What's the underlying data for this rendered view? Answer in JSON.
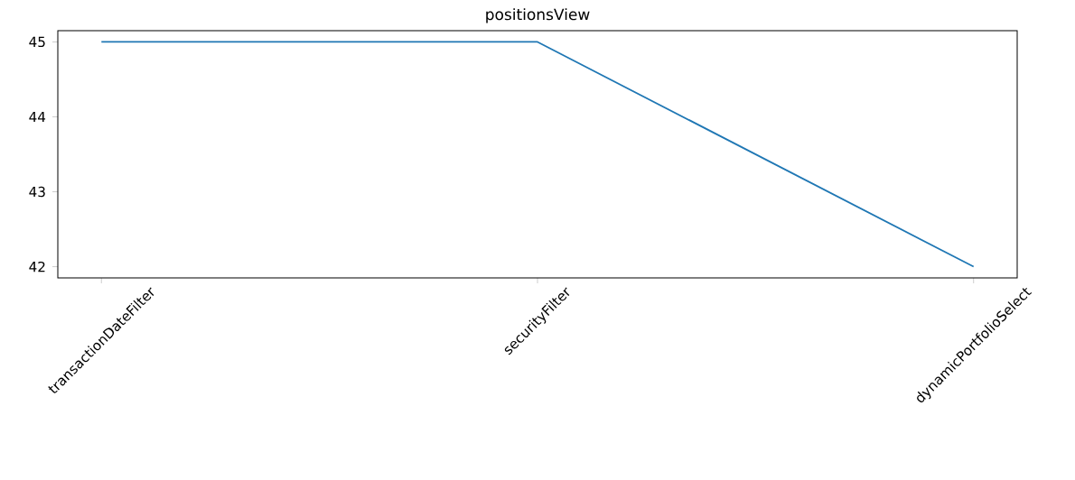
{
  "chart_data": {
    "type": "line",
    "title": "positionsView",
    "categories": [
      "transactionDateFilter",
      "securityFilter",
      "dynamicPortfolioSelect"
    ],
    "values": [
      45,
      45,
      42
    ],
    "color": "#1f77b4",
    "ylim": [
      41.85,
      45.15
    ],
    "yticks": [
      42,
      43,
      44,
      45
    ],
    "grid": false,
    "marker": "none",
    "line_style": "solid"
  }
}
